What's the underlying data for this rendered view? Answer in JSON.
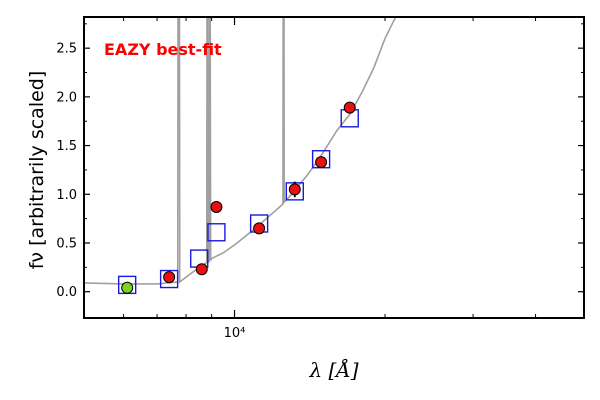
{
  "chart_data": {
    "type": "scatter",
    "annotation": "EAZY best-fit",
    "xlabel": "λ [Å]",
    "ylabel": "fν [arbitrarily scaled]",
    "xscale": "log",
    "xlim": [
      5000,
      50000
    ],
    "ylim": [
      -0.27,
      2.82
    ],
    "yticks": [
      0.0,
      0.5,
      1.0,
      1.5,
      2.0,
      2.5
    ],
    "ytick_labels": [
      "0.0",
      "0.5",
      "1.0",
      "1.5",
      "2.0",
      "2.5"
    ],
    "xticks": [
      10000
    ],
    "xtick_labels": [
      "10⁴"
    ],
    "grid": false,
    "colors": {
      "model_line": "#a0a0a0",
      "model_points": "#1a1adc",
      "observed": "#e81010",
      "observed_upper_limit": "#7ed321",
      "annotation": "#ff0000"
    },
    "series": [
      {
        "role": "model-spectrum-line",
        "x": [
          5000,
          6000,
          7000,
          7700,
          7710,
          7760,
          7770,
          8000,
          8500,
          8800,
          8810,
          8840,
          8850,
          8900,
          8910,
          8940,
          8960,
          9000,
          9500,
          10000,
          11000,
          12000,
          12500,
          12510,
          12560,
          12570,
          13000,
          14000,
          15000,
          16000,
          17000,
          18000,
          19000,
          20000,
          21000,
          22000
        ],
        "y": [
          0.09,
          0.08,
          0.08,
          0.1,
          2.82,
          2.82,
          0.1,
          0.15,
          0.25,
          0.3,
          2.82,
          2.82,
          0.3,
          0.31,
          2.82,
          2.82,
          0.32,
          0.34,
          0.4,
          0.48,
          0.65,
          0.82,
          0.9,
          2.82,
          2.82,
          0.92,
          1.0,
          1.2,
          1.42,
          1.65,
          1.82,
          2.05,
          2.3,
          2.6,
          2.82,
          2.82
        ]
      },
      {
        "role": "model-photometry",
        "x": [
          6100,
          7400,
          8500,
          9200,
          11200,
          13200,
          14900,
          17000
        ],
        "y": [
          0.07,
          0.13,
          0.34,
          0.61,
          0.7,
          1.03,
          1.36,
          1.78
        ]
      },
      {
        "role": "observed-photometry",
        "x": [
          7400,
          8600,
          9200,
          11200,
          13200,
          14900,
          17000
        ],
        "y": [
          0.15,
          0.23,
          0.87,
          0.65,
          1.05,
          1.33,
          1.89
        ],
        "yerr": [
          0.02,
          0.02,
          0.03,
          0.04,
          0.08,
          0.05,
          0.03
        ]
      },
      {
        "role": "observed-upper-limit",
        "x": [
          6100
        ],
        "y": [
          0.04
        ]
      }
    ]
  }
}
